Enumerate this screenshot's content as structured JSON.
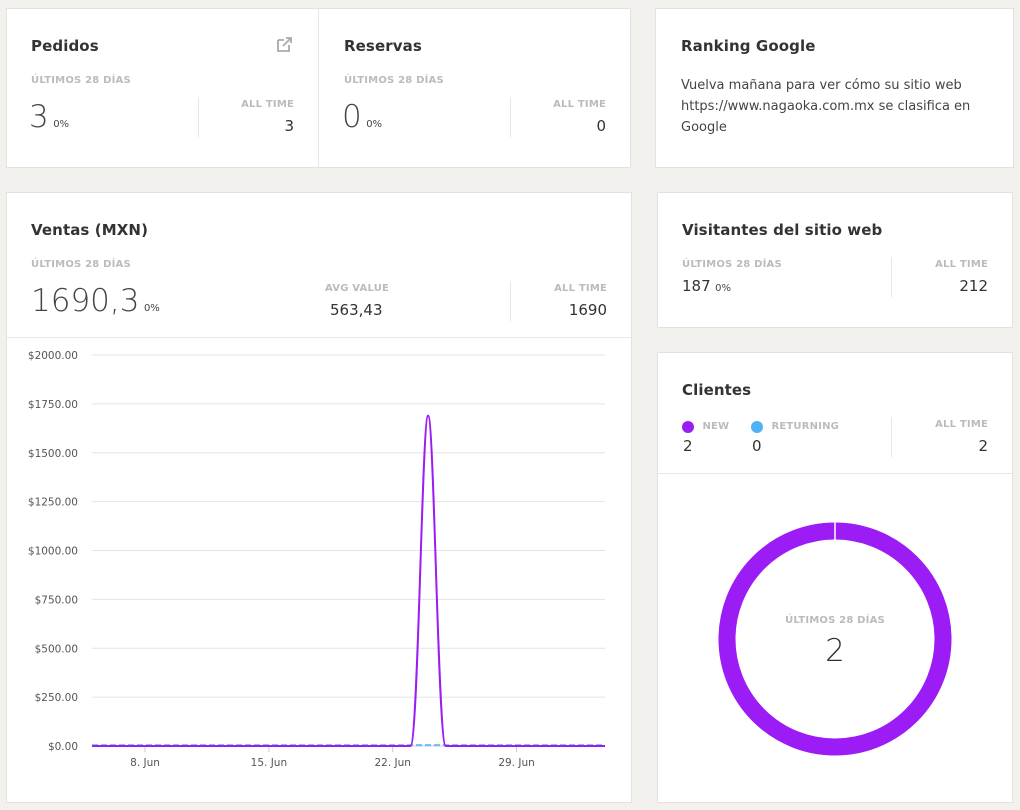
{
  "pedidos": {
    "title": "Pedidos",
    "period_label": "ÚLTIMOS 28 DÍAS",
    "value": "3",
    "change": "0%",
    "alltime_label": "ALL TIME",
    "alltime_value": "3",
    "icon": "external-link-icon"
  },
  "reservas": {
    "title": "Reservas",
    "period_label": "ÚLTIMOS 28 DÍAS",
    "value": "0",
    "change": "0%",
    "alltime_label": "ALL TIME",
    "alltime_value": "0"
  },
  "ranking": {
    "title": "Ranking Google",
    "text": "Vuelva mañana para ver cómo su sitio web https://www.nagaoka.com.mx se clasifica en Google"
  },
  "ventas": {
    "title": "Ventas (MXN)",
    "period_label": "ÚLTIMOS 28 DÍAS",
    "value": "1690,3",
    "change": "0%",
    "avg_label": "AVG VALUE",
    "avg_value": "563,43",
    "alltime_label": "ALL TIME",
    "alltime_value": "1690"
  },
  "visitantes": {
    "title": "Visitantes del sitio web",
    "period_label": "ÚLTIMOS 28 DÍAS",
    "value": "187",
    "change": "0%",
    "alltime_label": "ALL TIME",
    "alltime_value": "212"
  },
  "clientes": {
    "title": "Clientes",
    "new_label": "NEW",
    "new_value": "2",
    "returning_label": "RETURNING",
    "returning_value": "0",
    "alltime_label": "ALL TIME",
    "alltime_value": "2",
    "donut_label": "ÚLTIMOS 28 DÍAS",
    "donut_value": "2",
    "colors": {
      "new": "#9b1cf5",
      "returning": "#4db3f5"
    }
  },
  "chart_data": [
    {
      "type": "line",
      "title": "",
      "xlabel": "",
      "ylabel": "",
      "ylim": [
        0,
        2000
      ],
      "xlim": [
        "2017-06-05",
        "2017-07-04"
      ],
      "y_ticks": [
        0,
        250,
        500,
        750,
        1000,
        1250,
        1500,
        1750,
        2000
      ],
      "y_tick_labels": [
        "$0.00",
        "$250.00",
        "$500.00",
        "$750.00",
        "$1000.00",
        "$1250.00",
        "$1500.00",
        "$1750.00",
        "$2000.00"
      ],
      "x_ticks": [
        "2017-06-08",
        "2017-06-15",
        "2017-06-22",
        "2017-06-29"
      ],
      "x_tick_labels": [
        "8. Jun",
        "15. Jun",
        "22. Jun",
        "29. Jun"
      ],
      "grid": true,
      "series": [
        {
          "color": "#9b1cf5",
          "x": [
            "2017-06-05",
            "2017-06-23",
            "2017-06-24",
            "2017-06-25",
            "2017-07-04"
          ],
          "y": [
            0,
            0,
            1690,
            0,
            0
          ]
        },
        {
          "color": "#4db3f5",
          "dashed": true,
          "x": [
            "2017-06-05",
            "2017-07-04"
          ],
          "y": [
            0,
            0
          ]
        }
      ]
    },
    {
      "type": "pie",
      "categories": [
        "NEW",
        "RETURNING"
      ],
      "values": [
        2,
        0
      ],
      "colors": [
        "#9b1cf5",
        "#4db3f5"
      ],
      "donut": true
    }
  ]
}
